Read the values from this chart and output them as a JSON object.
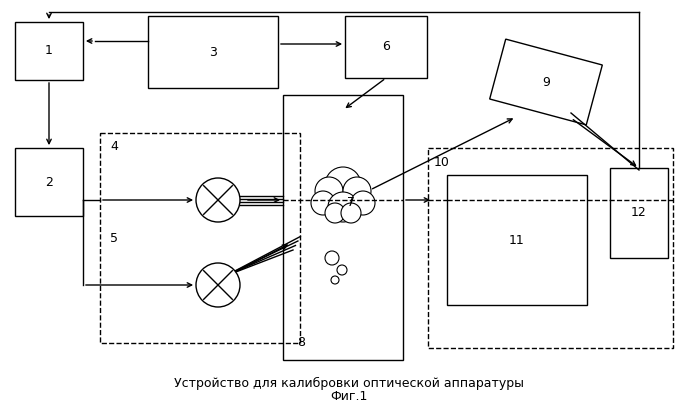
{
  "title_line1": "Устройство для калибровки оптической аппаратуры",
  "title_line2": "Фиг.1",
  "bg_color": "#ffffff",
  "fg_color": "#000000",
  "fig_width": 6.99,
  "fig_height": 4.13,
  "dpi": 100
}
